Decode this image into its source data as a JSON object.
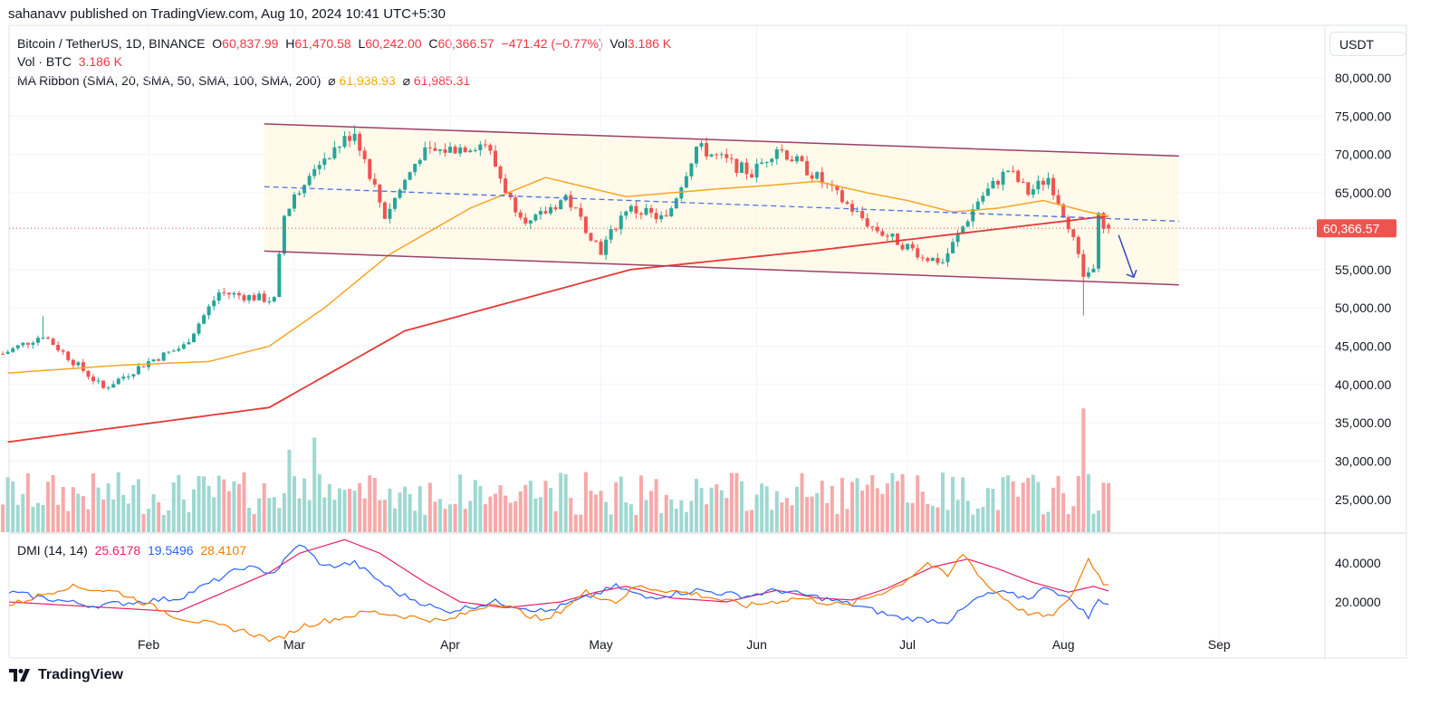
{
  "header": {
    "published": "sahanavv published on TradingView.com, Aug 10, 2024 10:41 UTC+5:30"
  },
  "legend": {
    "symbol": "Bitcoin / TetherUS, 1D, BINANCE",
    "o_label": "O",
    "o": "60,837.99",
    "h_label": "H",
    "h": "61,470.58",
    "l_label": "L",
    "l": "60,242.00",
    "c_label": "C",
    "c": "60,366.57",
    "change": "−471.42 (−0.77%)",
    "vol_label": "Vol",
    "vol": "3.186 K",
    "vol_series": "Vol · BTC",
    "vol_series_value": "3.186 K",
    "ma_ribbon": "MA Ribbon (SMA, 20, SMA, 50, SMA, 100, SMA, 200)",
    "ma_sym": "⌀",
    "ma1": "61,938.93",
    "ma2": "61,985.31"
  },
  "dmi": {
    "label": "DMI (14, 14)",
    "adx": "25.6178",
    "plus": "19.5496",
    "minus": "28.4107"
  },
  "axis": {
    "currency": "USDT",
    "last_price": "60,366.57"
  },
  "footer": {
    "brand": "TradingView"
  },
  "colors": {
    "up": "#26a69a",
    "down": "#ef5350",
    "ma50": "#f5a623",
    "ma200": "#e53935",
    "channel": "#9c3f6b",
    "dashed": "#4a6fe3",
    "adx": "#e91e63",
    "plus": "#2962ff",
    "minus": "#f57c00"
  },
  "chart_data": {
    "type": "candlestick",
    "title": "Bitcoin / TetherUS, 1D, BINANCE",
    "ylim": [
      22000,
      82000
    ],
    "y_ticks": [
      "80,000.00",
      "75,000.00",
      "70,000.00",
      "65,000.00",
      "55,000.00",
      "50,000.00",
      "45,000.00",
      "40,000.00",
      "35,000.00",
      "30,000.00",
      "25,000.00"
    ],
    "y_tick_values": [
      80000,
      75000,
      70000,
      65000,
      55000,
      50000,
      45000,
      40000,
      35000,
      30000,
      25000
    ],
    "x_ticks": [
      {
        "label": "Feb",
        "day": 31
      },
      {
        "label": "Mar",
        "day": 60
      },
      {
        "label": "Apr",
        "day": 91
      },
      {
        "label": "May",
        "day": 121
      },
      {
        "label": "Jun",
        "day": 152
      },
      {
        "label": "Jul",
        "day": 182
      },
      {
        "label": "Aug",
        "day": 213
      },
      {
        "label": "Sep",
        "day": 244
      }
    ],
    "close_waypoints_day_price": [
      [
        2,
        44000
      ],
      [
        10,
        46500
      ],
      [
        22,
        39500
      ],
      [
        31,
        43000
      ],
      [
        38,
        45000
      ],
      [
        45,
        52000
      ],
      [
        56,
        51000
      ],
      [
        58,
        62000
      ],
      [
        63,
        68000
      ],
      [
        72,
        73000
      ],
      [
        78,
        62000
      ],
      [
        85,
        70000
      ],
      [
        98,
        71500
      ],
      [
        103,
        64000
      ],
      [
        107,
        61000
      ],
      [
        114,
        64500
      ],
      [
        121,
        57500
      ],
      [
        126,
        63000
      ],
      [
        134,
        61500
      ],
      [
        140,
        71000
      ],
      [
        151,
        67500
      ],
      [
        156,
        71000
      ],
      [
        164,
        67000
      ],
      [
        175,
        60500
      ],
      [
        186,
        56500
      ],
      [
        189,
        56000
      ],
      [
        196,
        64000
      ],
      [
        202,
        68000
      ],
      [
        206,
        65000
      ],
      [
        210,
        67000
      ],
      [
        214,
        61000
      ],
      [
        217,
        54000
      ],
      [
        219,
        55000
      ],
      [
        220,
        61700
      ],
      [
        222,
        60366.57
      ]
    ],
    "wick_overrides": [
      {
        "day": 10,
        "high": 48900
      },
      {
        "day": 217,
        "low": 49000
      },
      {
        "day": 72,
        "high": 73800
      }
    ],
    "sma50_waypoints": [
      [
        3,
        41500
      ],
      [
        25,
        42500
      ],
      [
        43,
        43000
      ],
      [
        55,
        45000
      ],
      [
        66,
        50000
      ],
      [
        79,
        57000
      ],
      [
        95,
        63000
      ],
      [
        110,
        67000
      ],
      [
        126,
        64500
      ],
      [
        135,
        65000
      ],
      [
        144,
        65500
      ],
      [
        155,
        66000
      ],
      [
        164,
        66500
      ],
      [
        174,
        65000
      ],
      [
        182,
        64000
      ],
      [
        191,
        62500
      ],
      [
        200,
        63000
      ],
      [
        209,
        64000
      ],
      [
        218,
        62500
      ],
      [
        222,
        61938.93
      ]
    ],
    "sma200_waypoints": [
      [
        3,
        32500
      ],
      [
        55,
        37000
      ],
      [
        82,
        47000
      ],
      [
        127,
        55000
      ],
      [
        164,
        57500
      ],
      [
        222,
        61985.31
      ]
    ],
    "channel_upper": [
      [
        54,
        74000
      ],
      [
        236,
        69800
      ]
    ],
    "channel_lower": [
      [
        54,
        57400
      ],
      [
        236,
        53000
      ]
    ],
    "channel_mid_dashed": [
      [
        54,
        65800
      ],
      [
        236,
        61300
      ]
    ],
    "forecast_arrow": [
      [
        224,
        59500
      ],
      [
        227,
        54000
      ]
    ],
    "volume_spikes_k": [
      {
        "day": 64,
        "v": 55
      },
      {
        "day": 59,
        "v": 48
      },
      {
        "day": 217,
        "v": 72
      },
      {
        "day": 184,
        "v": 33
      },
      {
        "day": 129,
        "v": 33
      }
    ],
    "dmi_series": [
      {
        "name": "ADX",
        "value": 25.6178,
        "points": [
          [
            3,
            20
          ],
          [
            37,
            15
          ],
          [
            55,
            35
          ],
          [
            61,
            45
          ],
          [
            70,
            52
          ],
          [
            77,
            45
          ],
          [
            86,
            30
          ],
          [
            93,
            20
          ],
          [
            102,
            17
          ],
          [
            113,
            20
          ],
          [
            120,
            25
          ],
          [
            126,
            28
          ],
          [
            135,
            22
          ],
          [
            146,
            20
          ],
          [
            156,
            26
          ],
          [
            164,
            22
          ],
          [
            171,
            21
          ],
          [
            178,
            27
          ],
          [
            187,
            38
          ],
          [
            194,
            42
          ],
          [
            200,
            37
          ],
          [
            207,
            30
          ],
          [
            214,
            25
          ],
          [
            219,
            28
          ],
          [
            222,
            25.6
          ]
        ]
      },
      {
        "name": "+DI",
        "value": 19.5496,
        "points": [
          [
            3,
            25
          ],
          [
            20,
            18
          ],
          [
            37,
            22
          ],
          [
            50,
            38
          ],
          [
            56,
            35
          ],
          [
            61,
            50
          ],
          [
            66,
            38
          ],
          [
            72,
            40
          ],
          [
            80,
            25
          ],
          [
            90,
            15
          ],
          [
            100,
            20
          ],
          [
            110,
            15
          ],
          [
            118,
            22
          ],
          [
            124,
            28
          ],
          [
            130,
            22
          ],
          [
            140,
            26
          ],
          [
            150,
            23
          ],
          [
            156,
            26
          ],
          [
            165,
            22
          ],
          [
            172,
            18
          ],
          [
            180,
            12
          ],
          [
            190,
            10
          ],
          [
            196,
            22
          ],
          [
            200,
            25
          ],
          [
            206,
            22
          ],
          [
            210,
            28
          ],
          [
            216,
            18
          ],
          [
            218,
            12
          ],
          [
            220,
            21
          ],
          [
            222,
            19.5
          ]
        ]
      },
      {
        "name": "-DI",
        "value": 28.4107,
        "points": [
          [
            3,
            18
          ],
          [
            15,
            28
          ],
          [
            25,
            25
          ],
          [
            37,
            12
          ],
          [
            50,
            5
          ],
          [
            56,
            0
          ],
          [
            62,
            8
          ],
          [
            75,
            15
          ],
          [
            90,
            10
          ],
          [
            100,
            20
          ],
          [
            110,
            10
          ],
          [
            118,
            25
          ],
          [
            124,
            20
          ],
          [
            128,
            28
          ],
          [
            140,
            24
          ],
          [
            150,
            18
          ],
          [
            160,
            22
          ],
          [
            170,
            18
          ],
          [
            180,
            28
          ],
          [
            186,
            40
          ],
          [
            190,
            33
          ],
          [
            193,
            45
          ],
          [
            198,
            28
          ],
          [
            205,
            15
          ],
          [
            210,
            12
          ],
          [
            214,
            20
          ],
          [
            218,
            42
          ],
          [
            221,
            30
          ],
          [
            222,
            28.4
          ]
        ]
      }
    ],
    "dmi_ticks": [
      "40.0000",
      "20.0000"
    ],
    "dmi_tick_values": [
      40,
      20
    ]
  }
}
